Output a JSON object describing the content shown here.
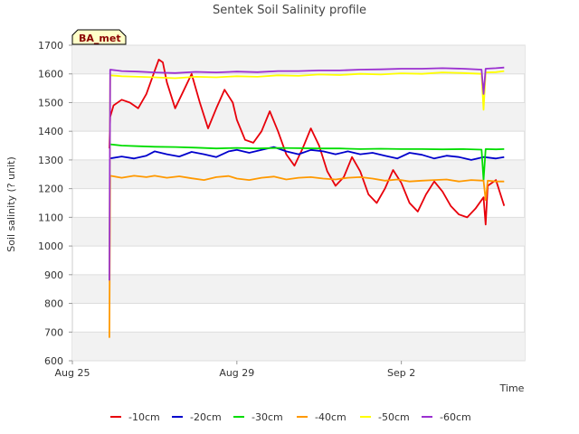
{
  "chart_data": {
    "type": "line",
    "title": "Sentek Soil Salinity profile",
    "xlabel": "Time",
    "ylabel": "Soil salinity (? unit)",
    "badge": "BA_met",
    "ylim": [
      600,
      1700
    ],
    "yticks": [
      600,
      700,
      800,
      900,
      1000,
      1100,
      1200,
      1300,
      1400,
      1500,
      1600,
      1700
    ],
    "xlim": [
      0,
      11
    ],
    "xticks": [
      {
        "value": 0,
        "label": "Aug 25"
      },
      {
        "value": 4,
        "label": "Aug 29"
      },
      {
        "value": 8,
        "label": "Sep 2"
      }
    ],
    "grid": true,
    "legend_position": "bottom",
    "series": [
      {
        "name": "-10cm",
        "color": "#e8000b",
        "x": [
          0.9,
          0.92,
          1.0,
          1.2,
          1.4,
          1.6,
          1.8,
          2.0,
          2.1,
          2.2,
          2.3,
          2.5,
          2.7,
          2.9,
          3.1,
          3.3,
          3.5,
          3.7,
          3.9,
          4.0,
          4.2,
          4.4,
          4.6,
          4.8,
          5.0,
          5.2,
          5.4,
          5.6,
          5.8,
          6.0,
          6.2,
          6.4,
          6.6,
          6.8,
          7.0,
          7.2,
          7.4,
          7.6,
          7.8,
          8.0,
          8.2,
          8.4,
          8.6,
          8.8,
          9.0,
          9.2,
          9.4,
          9.6,
          9.8,
          10.0,
          10.05,
          10.1,
          10.3,
          10.5
        ],
        "y": [
          1340,
          1450,
          1490,
          1510,
          1500,
          1480,
          1530,
          1610,
          1650,
          1640,
          1570,
          1480,
          1540,
          1600,
          1500,
          1410,
          1480,
          1545,
          1500,
          1440,
          1370,
          1360,
          1400,
          1470,
          1400,
          1320,
          1280,
          1340,
          1410,
          1350,
          1260,
          1210,
          1240,
          1310,
          1260,
          1180,
          1150,
          1200,
          1265,
          1220,
          1150,
          1120,
          1180,
          1225,
          1190,
          1140,
          1110,
          1100,
          1130,
          1170,
          1075,
          1210,
          1230,
          1140
        ]
      },
      {
        "name": "-20cm",
        "color": "#0000cc",
        "x": [
          0.9,
          1.2,
          1.5,
          1.8,
          2.0,
          2.3,
          2.6,
          2.9,
          3.2,
          3.5,
          3.8,
          4.0,
          4.3,
          4.6,
          4.9,
          5.2,
          5.5,
          5.8,
          6.1,
          6.4,
          6.7,
          7.0,
          7.3,
          7.6,
          7.9,
          8.2,
          8.5,
          8.8,
          9.1,
          9.4,
          9.7,
          10.0,
          10.3,
          10.5
        ],
        "y": [
          1305,
          1312,
          1305,
          1315,
          1330,
          1320,
          1312,
          1328,
          1320,
          1310,
          1330,
          1335,
          1325,
          1335,
          1345,
          1330,
          1320,
          1335,
          1330,
          1320,
          1330,
          1320,
          1325,
          1315,
          1305,
          1325,
          1318,
          1305,
          1315,
          1310,
          1300,
          1310,
          1305,
          1310
        ]
      },
      {
        "name": "-30cm",
        "color": "#00dd00",
        "x": [
          0.9,
          1.2,
          1.6,
          2.0,
          2.5,
          3.0,
          3.5,
          4.0,
          4.5,
          5.0,
          5.5,
          6.0,
          6.5,
          7.0,
          7.5,
          8.0,
          8.5,
          9.0,
          9.5,
          9.95,
          10.0,
          10.05,
          10.3,
          10.5
        ],
        "y": [
          1355,
          1350,
          1348,
          1346,
          1345,
          1343,
          1340,
          1342,
          1340,
          1342,
          1341,
          1340,
          1340,
          1338,
          1339,
          1338,
          1338,
          1337,
          1338,
          1336,
          1230,
          1338,
          1337,
          1338
        ]
      },
      {
        "name": "-40cm",
        "color": "#ff9900",
        "x": [
          0.9,
          0.92,
          1.2,
          1.5,
          1.8,
          2.0,
          2.3,
          2.6,
          2.9,
          3.2,
          3.5,
          3.8,
          4.0,
          4.3,
          4.6,
          4.9,
          5.2,
          5.5,
          5.8,
          6.1,
          6.4,
          6.7,
          7.0,
          7.3,
          7.6,
          7.9,
          8.2,
          8.5,
          8.8,
          9.1,
          9.4,
          9.7,
          10.0,
          10.05,
          10.1,
          10.3,
          10.5
        ],
        "y": [
          680,
          1245,
          1238,
          1245,
          1240,
          1245,
          1238,
          1243,
          1236,
          1230,
          1240,
          1244,
          1235,
          1230,
          1238,
          1242,
          1232,
          1238,
          1240,
          1235,
          1232,
          1238,
          1240,
          1235,
          1228,
          1232,
          1225,
          1228,
          1230,
          1232,
          1225,
          1230,
          1228,
          1160,
          1228,
          1225,
          1225
        ]
      },
      {
        "name": "-50cm",
        "color": "#ffff00",
        "x": [
          0.9,
          0.92,
          1.2,
          1.6,
          2.0,
          2.5,
          3.0,
          3.5,
          4.0,
          4.5,
          5.0,
          5.5,
          6.0,
          6.5,
          7.0,
          7.5,
          8.0,
          8.5,
          9.0,
          9.5,
          9.95,
          10.0,
          10.05,
          10.3,
          10.5
        ],
        "y": [
          880,
          1595,
          1592,
          1590,
          1588,
          1585,
          1590,
          1588,
          1592,
          1590,
          1595,
          1593,
          1598,
          1596,
          1600,
          1598,
          1602,
          1600,
          1605,
          1603,
          1600,
          1475,
          1605,
          1606,
          1610
        ]
      },
      {
        "name": "-60cm",
        "color": "#9b30d0",
        "x": [
          0.9,
          0.92,
          1.2,
          1.6,
          2.0,
          2.5,
          3.0,
          3.5,
          4.0,
          4.5,
          5.0,
          5.5,
          6.0,
          6.5,
          7.0,
          7.5,
          8.0,
          8.5,
          9.0,
          9.5,
          9.95,
          10.0,
          10.05,
          10.3,
          10.5
        ],
        "y": [
          880,
          1615,
          1610,
          1608,
          1605,
          1603,
          1607,
          1605,
          1608,
          1606,
          1610,
          1610,
          1612,
          1612,
          1615,
          1616,
          1618,
          1618,
          1620,
          1618,
          1615,
          1530,
          1618,
          1620,
          1622
        ]
      }
    ]
  }
}
